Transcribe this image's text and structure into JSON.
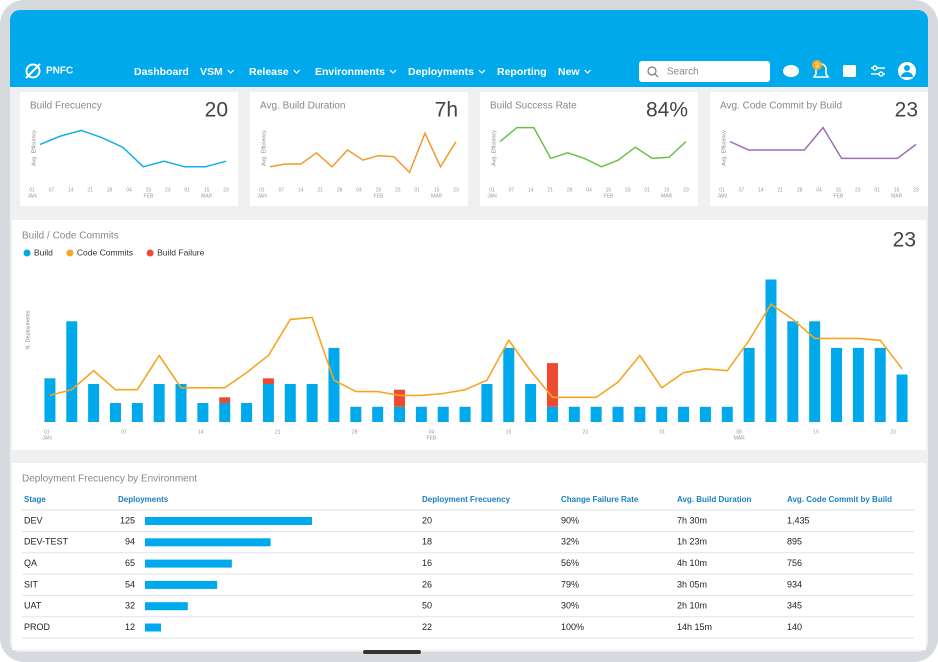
{
  "header": {
    "logo": "PNFC",
    "nav": [
      {
        "label": "Dashboard",
        "dropdown": false
      },
      {
        "label": "VSM",
        "dropdown": true
      },
      {
        "label": "Release",
        "dropdown": true
      },
      {
        "label": "Environments",
        "dropdown": true
      },
      {
        "label": "Deployments",
        "dropdown": true
      },
      {
        "label": "Reporting",
        "dropdown": false
      },
      {
        "label": "New",
        "dropdown": true
      }
    ],
    "search_placeholder": "Search",
    "notification_count": 9
  },
  "spark_xticks": [
    {
      "day": "01",
      "month": "JAN"
    },
    {
      "day": "07"
    },
    {
      "day": "14"
    },
    {
      "day": "21"
    },
    {
      "day": "28"
    },
    {
      "day": "04"
    },
    {
      "day": "15",
      "month": "FEB"
    },
    {
      "day": "23"
    },
    {
      "day": "01"
    },
    {
      "day": "15",
      "month": "MAR"
    },
    {
      "day": "23"
    }
  ],
  "kpi_cards": [
    {
      "title": "Build Frecuency",
      "value": "20",
      "y_label": "Avg. Efficiency",
      "color": "#14aee8",
      "ylim": [
        0,
        10
      ],
      "values": [
        6,
        7.5,
        8.5,
        7.2,
        5.5,
        2,
        3,
        2,
        2,
        3
      ]
    },
    {
      "title": "Avg. Build Duration",
      "value": "7h",
      "y_label": "Avg. Efficiency",
      "color": "#f29a2e",
      "ylim": [
        0,
        10
      ],
      "values": [
        2,
        2.5,
        2.5,
        4.5,
        2,
        5,
        3.2,
        4,
        3.8,
        1,
        8,
        2,
        6.5
      ]
    },
    {
      "title": "Build Success Rate",
      "value": "84%",
      "y_label": "Avg. Efficiency",
      "color": "#6cc04a",
      "ylim": [
        0,
        10
      ],
      "values": [
        6.5,
        9,
        9,
        3.5,
        4.5,
        3.5,
        2,
        3.2,
        5.5,
        3.5,
        3.7,
        6.5
      ]
    },
    {
      "title": "Avg. Code Commit by Build",
      "value": "23",
      "y_label": "Avg. Efficiency",
      "color": "#9b6fb5",
      "ylim": [
        0,
        10
      ],
      "values": [
        6.5,
        5,
        5,
        5,
        5,
        9,
        3.5,
        3.5,
        3.5,
        3.5,
        6
      ]
    }
  ],
  "main_chart": {
    "type": "bar",
    "title": "Build / Code Commits",
    "value": "23",
    "y_label": "N. Deployments",
    "ylim": [
      0,
      8
    ],
    "xticks": [
      {
        "day": "01",
        "month": "JAN"
      },
      {
        "day": "07"
      },
      {
        "day": "14"
      },
      {
        "day": "21"
      },
      {
        "day": "28"
      },
      {
        "day": "04",
        "month": "FEB"
      },
      {
        "day": "15"
      },
      {
        "day": "23"
      },
      {
        "day": "01"
      },
      {
        "day": "08",
        "month": "MAR"
      },
      {
        "day": "15"
      },
      {
        "day": "23"
      }
    ],
    "series": [
      {
        "name": "Build",
        "color": "#00a9ec",
        "kind": "bar",
        "values": [
          2.3,
          5.3,
          2,
          1,
          1,
          2,
          2,
          1,
          1,
          1,
          2,
          2,
          2,
          3.9,
          0.8,
          0.8,
          0.8,
          0.8,
          0.8,
          0.8,
          2,
          3.9,
          2,
          0.8,
          0.8,
          0.8,
          0.8,
          0.8,
          0.8,
          0.8,
          0.8,
          0.8,
          3.9,
          7.5,
          5.3,
          5.3,
          3.9,
          3.9,
          3.9,
          2.5
        ]
      },
      {
        "name": "Code Commits",
        "color": "#f5a623",
        "kind": "line",
        "values": [
          1.4,
          1.7,
          2.7,
          1.7,
          1.7,
          3.5,
          1.8,
          1.8,
          1.8,
          2.6,
          3.5,
          5.4,
          5.5,
          2.2,
          1.6,
          1.6,
          1.4,
          1.4,
          1.5,
          1.7,
          2.2,
          4.3,
          2.7,
          1.3,
          1.3,
          1.3,
          2.1,
          3.5,
          1.8,
          2.6,
          2.8,
          2.7,
          4.3,
          6.2,
          5.4,
          4.4,
          4.4,
          4.4,
          4.3,
          2.8
        ]
      },
      {
        "name": "Build Failure",
        "color": "#ec4b32",
        "kind": "stack",
        "values": [
          0,
          0,
          0,
          0,
          0,
          0,
          0,
          0,
          0.3,
          0,
          0.3,
          0,
          0,
          0,
          0,
          0,
          0.9,
          0,
          0,
          0,
          0,
          0,
          0,
          2.3,
          0,
          0,
          0,
          0,
          0,
          0,
          0,
          0,
          0,
          0,
          0,
          0,
          0,
          0,
          0,
          0
        ]
      }
    ]
  },
  "deployment_table": {
    "title": "Deployment Frecuency by Environment",
    "columns": [
      "Stage",
      "Deployments",
      "Deployment Frecuency",
      "Change Failure Rate",
      "Avg. Build Duration",
      "Avg. Code Commit by Build"
    ],
    "rows": [
      [
        "DEV",
        125,
        "20",
        "90%",
        "7h 30m",
        "1,435"
      ],
      [
        "DEV-TEST",
        94,
        "18",
        "32%",
        "1h 23m",
        "895"
      ],
      [
        "QA",
        65,
        "16",
        "56%",
        "4h 10m",
        "756"
      ],
      [
        "SIT",
        54,
        "26",
        "79%",
        "3h 05m",
        "934"
      ],
      [
        "UAT",
        32,
        "50",
        "30%",
        "2h 10m",
        "345"
      ],
      [
        "PROD",
        12,
        "22",
        "100%",
        "14h 15m",
        "140"
      ]
    ]
  }
}
